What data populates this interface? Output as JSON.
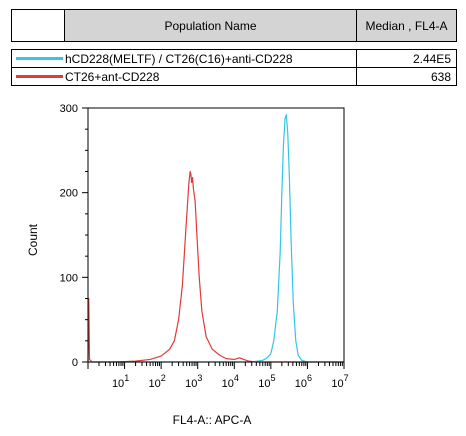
{
  "table": {
    "headers": [
      "",
      "Population Name",
      "Median , FL4-A"
    ],
    "rows": [
      {
        "name": "hCD228(MELTF) / CT26(C16)+anti-CD228",
        "value": "2.44E5",
        "color": "#33c6e6"
      },
      {
        "name": "CT26+ant-CD228",
        "value": "638",
        "color": "#e03a3a"
      }
    ]
  },
  "chart_data": {
    "type": "line",
    "xlabel": "FL4-A:: APC-A",
    "ylabel": "Count",
    "xscale": "log",
    "xlim": [
      1,
      10000000
    ],
    "ylim": [
      0,
      300
    ],
    "y_ticks": [
      "0",
      "100",
      "200",
      "300"
    ],
    "x_ticks": [
      {
        "base": "10",
        "exp": "1"
      },
      {
        "base": "10",
        "exp": "2"
      },
      {
        "base": "10",
        "exp": "3"
      },
      {
        "base": "10",
        "exp": "4"
      },
      {
        "base": "10",
        "exp": "5"
      },
      {
        "base": "10",
        "exp": "6"
      },
      {
        "base": "10",
        "exp": "7"
      }
    ],
    "grid": false,
    "series": [
      {
        "name": "hCD228(MELTF) / CT26(C16)+anti-CD228",
        "color": "#33c6e6",
        "points": [
          [
            1,
            0
          ],
          [
            100,
            0
          ],
          [
            10000,
            0
          ],
          [
            30000,
            0
          ],
          [
            60000,
            2
          ],
          [
            80000,
            5
          ],
          [
            100000,
            10
          ],
          [
            120000,
            25
          ],
          [
            150000,
            60
          ],
          [
            180000,
            130
          ],
          [
            200000,
            200
          ],
          [
            220000,
            255
          ],
          [
            245000,
            288
          ],
          [
            265000,
            292
          ],
          [
            290000,
            270
          ],
          [
            320000,
            220
          ],
          [
            360000,
            140
          ],
          [
            410000,
            70
          ],
          [
            480000,
            25
          ],
          [
            560000,
            8
          ],
          [
            700000,
            2
          ],
          [
            1000000,
            0
          ],
          [
            3000000,
            0
          ],
          [
            10000000,
            0
          ]
        ]
      },
      {
        "name": "CT26+ant-CD228",
        "color": "#e03a3a",
        "points": [
          [
            1,
            0
          ],
          [
            1.05,
            75
          ],
          [
            1.1,
            3
          ],
          [
            1.3,
            0
          ],
          [
            5,
            0
          ],
          [
            20,
            1
          ],
          [
            50,
            3
          ],
          [
            100,
            7
          ],
          [
            170,
            15
          ],
          [
            230,
            25
          ],
          [
            300,
            50
          ],
          [
            380,
            90
          ],
          [
            480,
            160
          ],
          [
            570,
            210
          ],
          [
            620,
            225
          ],
          [
            650,
            222
          ],
          [
            680,
            212
          ],
          [
            720,
            218
          ],
          [
            760,
            205
          ],
          [
            850,
            190
          ],
          [
            950,
            150
          ],
          [
            1100,
            100
          ],
          [
            1300,
            60
          ],
          [
            1700,
            30
          ],
          [
            2500,
            15
          ],
          [
            4000,
            8
          ],
          [
            6000,
            4
          ],
          [
            10000,
            3
          ],
          [
            14000,
            5
          ],
          [
            18000,
            3
          ],
          [
            25000,
            1
          ],
          [
            40000,
            0
          ],
          [
            100000,
            0
          ],
          [
            10000000,
            0
          ]
        ]
      }
    ]
  }
}
